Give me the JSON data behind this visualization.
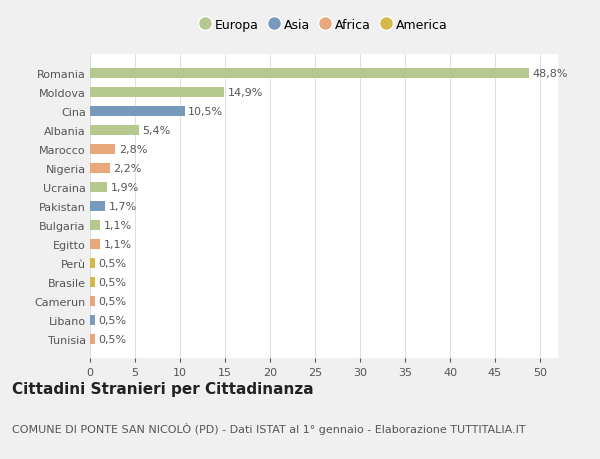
{
  "categories": [
    "Tunisia",
    "Libano",
    "Camerun",
    "Brasile",
    "Perù",
    "Egitto",
    "Bulgaria",
    "Pakistan",
    "Ucraina",
    "Nigeria",
    "Marocco",
    "Albania",
    "Cina",
    "Moldova",
    "Romania"
  ],
  "values": [
    0.5,
    0.5,
    0.5,
    0.5,
    0.5,
    1.1,
    1.1,
    1.7,
    1.9,
    2.2,
    2.8,
    5.4,
    10.5,
    14.9,
    48.8
  ],
  "labels": [
    "0,5%",
    "0,5%",
    "0,5%",
    "0,5%",
    "0,5%",
    "1,1%",
    "1,1%",
    "1,7%",
    "1,9%",
    "2,2%",
    "2,8%",
    "5,4%",
    "10,5%",
    "14,9%",
    "48,8%"
  ],
  "colors": [
    "#e8a87c",
    "#7799bb",
    "#e8a87c",
    "#d4b84a",
    "#d4b84a",
    "#e8a87c",
    "#b5c98e",
    "#7799bb",
    "#b5c98e",
    "#e8a87c",
    "#e8a87c",
    "#b5c98e",
    "#7799bb",
    "#b5c98e",
    "#b5c98e"
  ],
  "legend_labels": [
    "Europa",
    "Asia",
    "Africa",
    "America"
  ],
  "legend_colors": [
    "#b5c98e",
    "#7799bb",
    "#e8a87c",
    "#d4b84a"
  ],
  "title": "Cittadini Stranieri per Cittadinanza",
  "subtitle": "COMUNE DI PONTE SAN NICOLÒ (PD) - Dati ISTAT al 1° gennaio - Elaborazione TUTTITALIA.IT",
  "xlim": [
    0,
    52
  ],
  "xticks": [
    0,
    5,
    10,
    15,
    20,
    25,
    30,
    35,
    40,
    45,
    50
  ],
  "background_color": "#f0f0f0",
  "plot_background": "#ffffff",
  "grid_color": "#dddddd",
  "title_fontsize": 11,
  "subtitle_fontsize": 8,
  "label_fontsize": 8,
  "tick_fontsize": 8,
  "legend_fontsize": 9
}
